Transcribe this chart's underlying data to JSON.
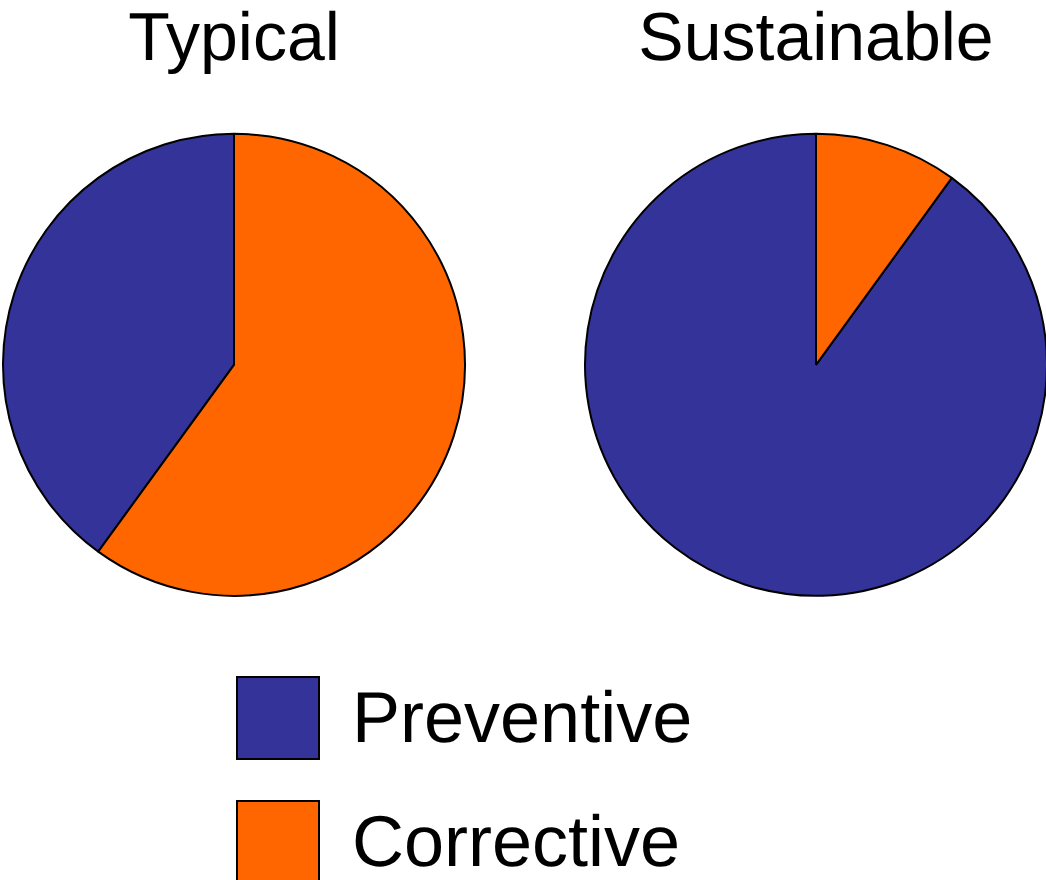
{
  "chart_data": {
    "type": "pie",
    "categories": [
      "Preventive",
      "Corrective"
    ],
    "colors": [
      "#333399",
      "#ff6600"
    ],
    "legend": "bottom",
    "series": [
      {
        "name": "Typical",
        "values": [
          40,
          60
        ]
      },
      {
        "name": "Sustainable",
        "values": [
          90,
          10
        ]
      }
    ]
  }
}
